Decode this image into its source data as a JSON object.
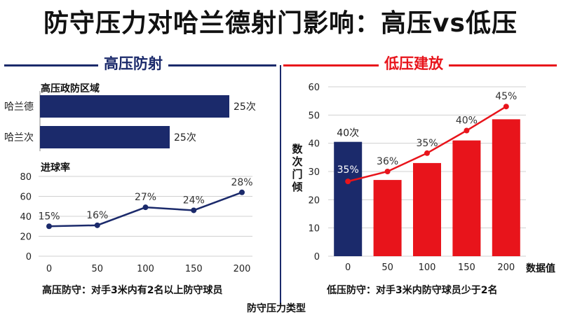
{
  "title": "防守压力对哈兰德射门影响：高压vs低压",
  "left_header": "高压防射",
  "right_header": "低压建放",
  "bottom_label": "防守压力类型",
  "colors": {
    "navy": "#1b2a6b",
    "red": "#e8141b"
  },
  "chart_data": [
    {
      "type": "bar",
      "orientation": "horizontal",
      "title": "高压政防区域",
      "categories": [
        "哈兰德",
        "哈兰次"
      ],
      "values": [
        25,
        25
      ],
      "value_labels": [
        "25次",
        "25次"
      ]
    },
    {
      "type": "line",
      "title": "进球率",
      "x": [
        0,
        50,
        100,
        150,
        200
      ],
      "y": [
        30,
        31,
        49,
        46,
        64
      ],
      "point_labels": [
        "15%",
        "16%",
        "27%",
        "24%",
        "28%"
      ],
      "ylim": [
        0,
        80
      ],
      "yticks": [
        0,
        20,
        40,
        60,
        80
      ],
      "xticks": [
        0,
        50,
        100,
        150,
        200
      ],
      "grid": true,
      "caption": "高压防守：对手3米内有2名以上防守球员"
    },
    {
      "type": "bar+line",
      "categories": [
        "0",
        "50",
        "100",
        "150",
        "200"
      ],
      "bars": [
        40.5,
        27,
        33,
        41,
        48.5
      ],
      "bar_labels": [
        "40次",
        "",
        "",
        "",
        ""
      ],
      "line": [
        26.5,
        30,
        36.5,
        44.5,
        53
      ],
      "line_labels": [
        "35%",
        "36%",
        "35%",
        "40%",
        "45%"
      ],
      "ylim": [
        0,
        60
      ],
      "yticks": [
        0,
        10,
        20,
        30,
        40,
        50,
        60
      ],
      "ylabel": "数次门倾",
      "xlabel": "数据值",
      "grid": true,
      "caption": "低压防守：对手3米内防守球员少于2名"
    }
  ]
}
